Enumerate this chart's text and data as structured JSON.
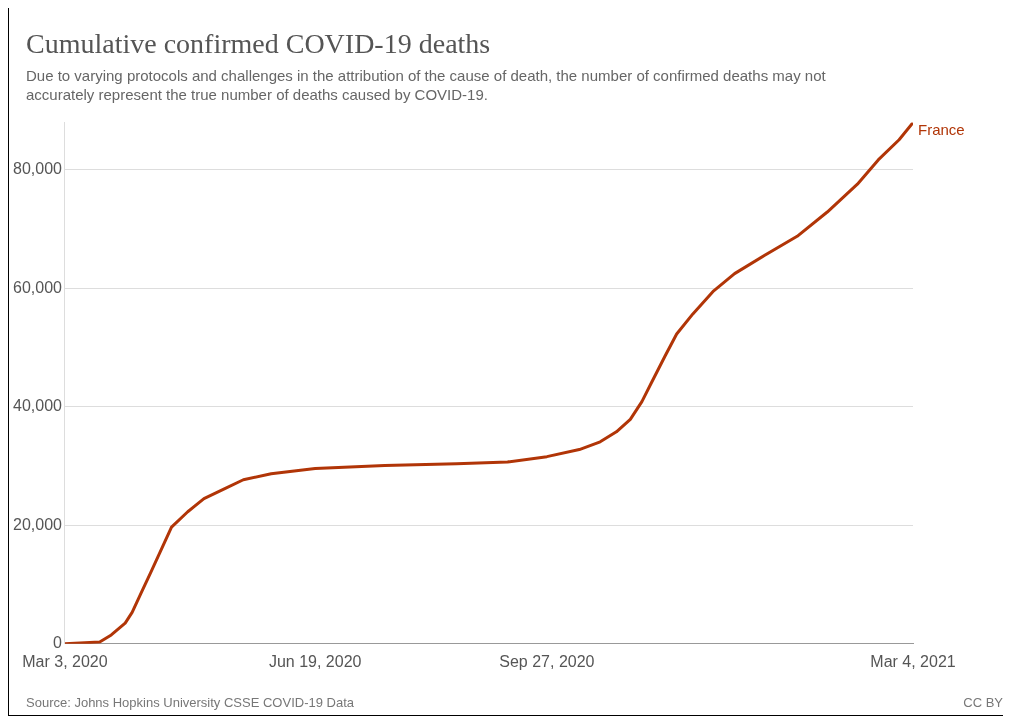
{
  "chart_data": {
    "type": "line",
    "title": "Cumulative confirmed COVID-19 deaths",
    "subtitle": "Due to varying protocols and challenges in the attribution of the cause of death, the number of confirmed deaths may not accurately represent the true number of deaths caused by COVID-19.",
    "annotations": [
      "Source: Johns Hopkins University CSSE COVID-19 Data",
      "CC BY"
    ],
    "x": [
      "2020-03-03",
      "2020-03-18",
      "2020-03-23",
      "2020-03-29",
      "2020-04-01",
      "2020-04-05",
      "2020-04-09",
      "2020-04-14",
      "2020-04-18",
      "2020-04-25",
      "2020-05-02",
      "2020-05-11",
      "2020-05-19",
      "2020-05-31",
      "2020-06-19",
      "2020-07-19",
      "2020-08-19",
      "2020-09-10",
      "2020-09-27",
      "2020-10-11",
      "2020-10-20",
      "2020-10-27",
      "2020-11-02",
      "2020-11-07",
      "2020-11-11",
      "2020-11-17",
      "2020-11-22",
      "2020-11-29",
      "2020-12-08",
      "2020-12-17",
      "2020-12-30",
      "2021-01-13",
      "2021-01-26",
      "2021-02-08",
      "2021-02-17",
      "2021-02-26",
      "2021-03-04"
    ],
    "series": [
      {
        "name": "France",
        "color": "#b13507",
        "values": [
          0,
          300,
          1500,
          3500,
          5300,
          8700,
          12000,
          16300,
          19700,
          22300,
          24500,
          26200,
          27700,
          28700,
          29600,
          30100,
          30400,
          30700,
          31600,
          32800,
          34100,
          35800,
          37900,
          40900,
          44000,
          48600,
          52300,
          55700,
          59600,
          62500,
          65600,
          68800,
          72900,
          77600,
          81700,
          85100,
          88000
        ]
      }
    ],
    "xlim": [
      "2020-03-03",
      "2021-03-04"
    ],
    "xticks": [
      {
        "value": "2020-03-03",
        "label": "Mar 3, 2020"
      },
      {
        "value": "2020-06-19",
        "label": "Jun 19, 2020"
      },
      {
        "value": "2020-09-27",
        "label": "Sep 27, 2020"
      },
      {
        "value": "2021-03-04",
        "label": "Mar 4, 2021"
      }
    ],
    "yticks": [
      {
        "value": 0,
        "label": "0"
      },
      {
        "value": 20000,
        "label": "20,000"
      },
      {
        "value": 40000,
        "label": "40,000"
      },
      {
        "value": 60000,
        "label": "60,000"
      },
      {
        "value": 80000,
        "label": "80,000"
      }
    ],
    "ylim": [
      0,
      88000
    ],
    "grid": "y",
    "marker": "none",
    "line_style": "solid",
    "legend": false
  }
}
